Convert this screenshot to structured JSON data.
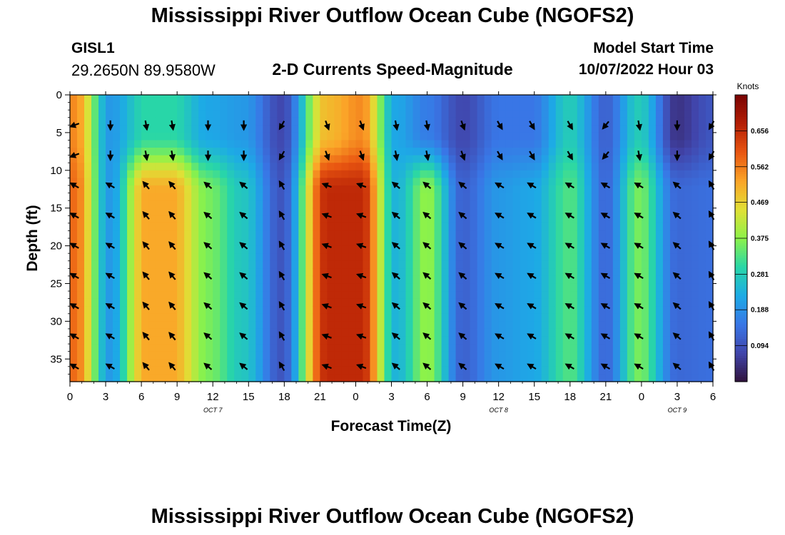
{
  "header": {
    "title": "Mississippi River Outflow Ocean Cube (NGOFS2)",
    "station_id": "GISL1",
    "coordinates": "29.2650N  89.9580W",
    "subtitle": "2-D Currents Speed-Magnitude",
    "model_start_label": "Model Start Time",
    "model_start_value": "10/07/2022 Hour 03"
  },
  "footer": {
    "title": "Mississippi River Outflow Ocean Cube (NGOFS2)"
  },
  "chart_data": {
    "type": "heatmap",
    "title": "2-D Currents Speed-Magnitude",
    "xlabel": "Forecast Time(Z)",
    "ylabel": "Depth (ft)",
    "x_range_hours": [
      0,
      54
    ],
    "x_tick_hours": [
      0,
      3,
      6,
      9,
      12,
      15,
      18,
      21,
      24,
      27,
      30,
      33,
      36,
      39,
      42,
      45,
      48,
      51,
      54
    ],
    "x_tick_labels": [
      "0",
      "3",
      "6",
      "9",
      "12",
      "15",
      "18",
      "21",
      "0",
      "3",
      "6",
      "9",
      "12",
      "15",
      "18",
      "21",
      "0",
      "3",
      "6"
    ],
    "date_labels": [
      {
        "hour": 12,
        "text": "OCT 7"
      },
      {
        "hour": 36,
        "text": "OCT 8"
      },
      {
        "hour": 51,
        "text": "OCT 9"
      }
    ],
    "y_range_ft": [
      0,
      38
    ],
    "y_ticks": [
      0,
      5,
      10,
      15,
      20,
      25,
      30,
      35
    ],
    "colorbar": {
      "label": "Knots",
      "range": [
        0,
        0.75
      ],
      "ticks": [
        0.094,
        0.188,
        0.281,
        0.375,
        0.469,
        0.562,
        0.656
      ],
      "tick_labels": [
        "0.094",
        "0.188",
        "0.281",
        "0.375",
        "0.469",
        "0.562",
        "0.656"
      ]
    },
    "arrow_hours": [
      0.4,
      3.4,
      6.4,
      8.6,
      11.6,
      14.6,
      17.8,
      21.6,
      24.5,
      27.4,
      30.0,
      33.0,
      36.1,
      38.8,
      42.0,
      45.0,
      47.8,
      51.0,
      54.0
    ],
    "arrow_depths_ft": [
      4,
      8,
      12,
      16,
      20,
      24,
      28,
      32,
      36
    ],
    "surface_speed_knots": [
      0.55,
      0.2,
      0.3,
      0.3,
      0.22,
      0.2,
      0.08,
      0.5,
      0.55,
      0.22,
      0.16,
      0.08,
      0.15,
      0.15,
      0.28,
      0.12,
      0.28,
      0.05,
      0.1
    ],
    "deep_speed_knots": [
      0.58,
      0.2,
      0.52,
      0.52,
      0.36,
      0.27,
      0.1,
      0.66,
      0.66,
      0.24,
      0.38,
      0.12,
      0.2,
      0.22,
      0.33,
      0.13,
      0.36,
      0.13,
      0.14
    ],
    "surface_direction_deg": [
      200,
      270,
      280,
      280,
      270,
      270,
      240,
      290,
      290,
      280,
      280,
      290,
      300,
      300,
      300,
      230,
      280,
      270,
      240
    ],
    "deep_direction_deg": [
      150,
      150,
      130,
      130,
      140,
      140,
      120,
      160,
      160,
      140,
      140,
      140,
      150,
      150,
      150,
      150,
      150,
      140,
      120
    ]
  }
}
